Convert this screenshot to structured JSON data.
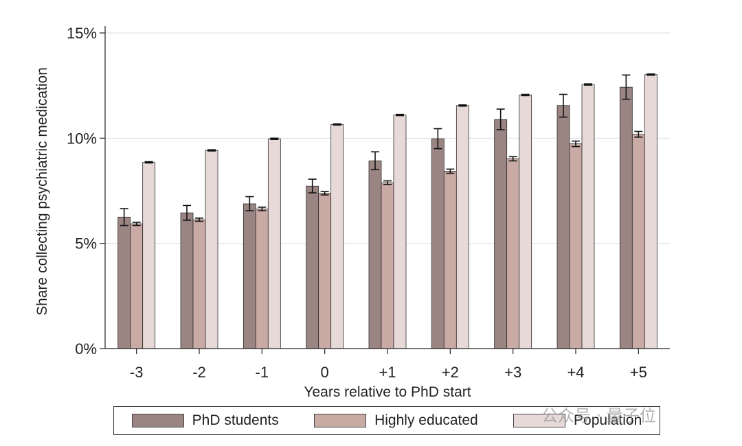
{
  "chart_data": {
    "type": "bar",
    "title": "",
    "xlabel": "Years relative to PhD start",
    "ylabel": "Share collecting psychiatric medication",
    "categories": [
      "-3",
      "-2",
      "-1",
      "0",
      "+1",
      "+2",
      "+3",
      "+4",
      "+5"
    ],
    "ylim": [
      0,
      15
    ],
    "yticks": [
      0,
      5,
      10,
      15
    ],
    "ytick_labels": [
      "0%",
      "5%",
      "10%",
      "15%"
    ],
    "grid": true,
    "legend_position": "bottom",
    "series": [
      {
        "name": "PhD students",
        "color": "#9b8583",
        "values": [
          6.25,
          6.45,
          6.88,
          7.72,
          8.92,
          9.97,
          10.88,
          11.55,
          12.42
        ],
        "ci_low": [
          5.85,
          6.1,
          6.55,
          7.4,
          8.5,
          9.5,
          10.4,
          11.0,
          11.85
        ],
        "ci_high": [
          6.65,
          6.8,
          7.22,
          8.05,
          9.35,
          10.45,
          11.38,
          12.08,
          13.0
        ]
      },
      {
        "name": "Highly educated",
        "color": "#c9aaa5",
        "values": [
          5.93,
          6.12,
          6.63,
          7.38,
          7.88,
          8.43,
          9.02,
          9.73,
          10.18
        ],
        "ci_low": [
          5.85,
          6.05,
          6.55,
          7.3,
          7.8,
          8.33,
          8.92,
          9.6,
          10.05
        ],
        "ci_high": [
          6.0,
          6.2,
          6.72,
          7.46,
          7.97,
          8.53,
          9.12,
          9.86,
          10.32
        ]
      },
      {
        "name": "Population",
        "color": "#e6d9d8",
        "values": [
          8.85,
          9.42,
          9.97,
          10.65,
          11.1,
          11.55,
          12.05,
          12.55,
          13.02
        ],
        "ci_low": [
          8.82,
          9.39,
          9.94,
          10.62,
          11.07,
          11.52,
          12.02,
          12.52,
          12.99
        ],
        "ci_high": [
          8.88,
          9.45,
          10.0,
          10.68,
          11.13,
          11.58,
          12.08,
          12.58,
          13.05
        ]
      }
    ]
  },
  "watermark": "公众号 · 量子位"
}
